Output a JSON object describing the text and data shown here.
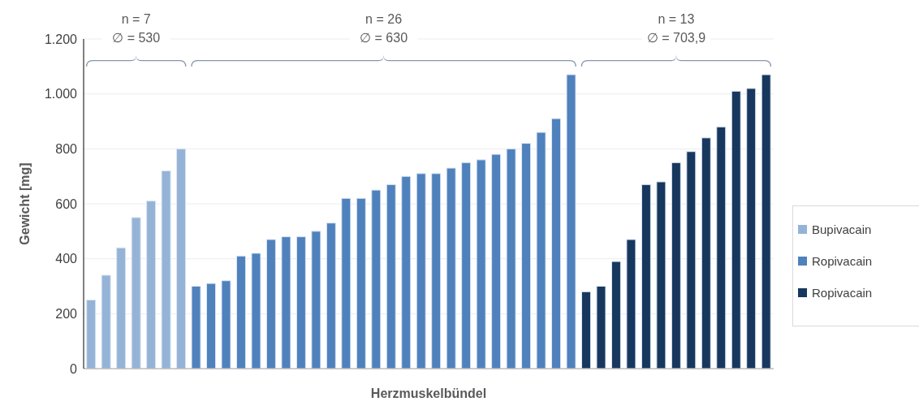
{
  "chart_data": {
    "type": "bar",
    "xlabel": "Herzmuskelbündel",
    "ylabel": "Gewicht [mg]",
    "categories": [
      null,
      null,
      null,
      null,
      null,
      null,
      null,
      null,
      null,
      null,
      null,
      null,
      null,
      null,
      null,
      null,
      null,
      null,
      null,
      null,
      null,
      null,
      null,
      null,
      null,
      null,
      null,
      null,
      null,
      null,
      null,
      null,
      null,
      null,
      null,
      null,
      null,
      null,
      null,
      null,
      null,
      null,
      null,
      null,
      null,
      null
    ],
    "series": [
      {
        "name": "Bupivacain",
        "color": "#95b3d7",
        "values": [
          250,
          340,
          440,
          550,
          610,
          720,
          800,
          null,
          null,
          null,
          null,
          null,
          null,
          null,
          null,
          null,
          null,
          null,
          null,
          null,
          null,
          null,
          null,
          null,
          null,
          null,
          null,
          null,
          null,
          null,
          null,
          null,
          null,
          null,
          null,
          null,
          null,
          null,
          null,
          null,
          null,
          null,
          null,
          null,
          null,
          null
        ]
      },
      {
        "name": "Ropivacain",
        "color": "#4f81bd",
        "values": [
          null,
          null,
          null,
          null,
          null,
          null,
          null,
          300,
          310,
          320,
          410,
          420,
          470,
          480,
          480,
          500,
          530,
          620,
          620,
          650,
          670,
          700,
          710,
          710,
          730,
          750,
          760,
          780,
          800,
          820,
          860,
          910,
          1070,
          null,
          null,
          null,
          null,
          null,
          null,
          null,
          null,
          null,
          null,
          null,
          null,
          null
        ]
      },
      {
        "name": "Ropivacain",
        "color": "#17375e",
        "values": [
          null,
          null,
          null,
          null,
          null,
          null,
          null,
          null,
          null,
          null,
          null,
          null,
          null,
          null,
          null,
          null,
          null,
          null,
          null,
          null,
          null,
          null,
          null,
          null,
          null,
          null,
          null,
          null,
          null,
          null,
          null,
          null,
          null,
          280,
          300,
          390,
          470,
          670,
          680,
          750,
          790,
          840,
          880,
          1010,
          1020,
          1070
        ]
      }
    ],
    "ylim": [
      0,
      1200
    ],
    "yticks": [
      0,
      200,
      400,
      600,
      800,
      {
        "value": 1000,
        "label": "1.000"
      },
      {
        "value": 1200,
        "label": "1.200"
      }
    ],
    "grid": "y",
    "legend": "right",
    "annotations": [
      "n = 7",
      "∅ = 530",
      "n = 26",
      "∅ = 630",
      "n = 13",
      "∅ = 703,9"
    ]
  }
}
